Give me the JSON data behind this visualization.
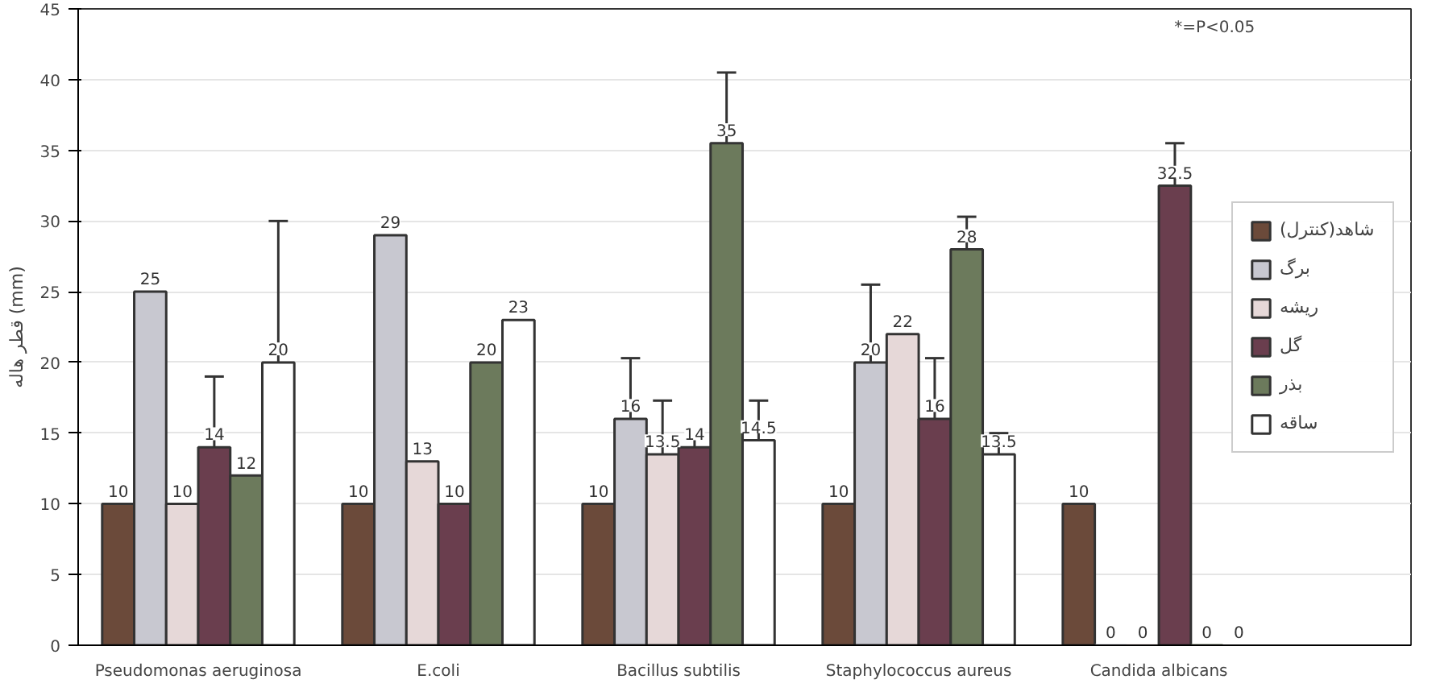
{
  "chart_data": {
    "type": "bar",
    "ylabel": "قطر هاله (mm)",
    "categories": [
      "Pseudomonas aeruginosa",
      "E.coli",
      "Bacillus subtilis",
      "Staphylococcus aureus",
      "Candida albicans"
    ],
    "series": [
      {
        "name": "شاهد(کنترل)",
        "color": "#6b4a3a",
        "values": [
          10,
          10,
          10,
          10,
          10
        ],
        "value_labels": [
          "10",
          "10",
          "10",
          "10",
          "10"
        ],
        "errors": [
          null,
          null,
          null,
          null,
          null
        ]
      },
      {
        "name": "برگ",
        "color": "#c8c8d0",
        "values": [
          25,
          29,
          16,
          20,
          0
        ],
        "value_labels": [
          "25",
          "29",
          "16",
          "20",
          "0"
        ],
        "errors": [
          null,
          null,
          [
            16,
            20.3
          ],
          [
            20,
            25.5
          ],
          null
        ]
      },
      {
        "name": "ریشه",
        "color": "#e6d8d8",
        "values": [
          10,
          13,
          13.5,
          22,
          0
        ],
        "value_labels": [
          "10",
          "13",
          "13.5",
          "22",
          "0"
        ],
        "errors": [
          null,
          null,
          [
            13.5,
            17.3
          ],
          null,
          null
        ]
      },
      {
        "name": "گل",
        "color": "#6a3e4e",
        "values": [
          14,
          10,
          14,
          16,
          32.5
        ],
        "value_labels": [
          "14",
          "10",
          "14",
          "16",
          "32.5"
        ],
        "errors": [
          [
            14,
            19
          ],
          null,
          [
            14,
            15
          ],
          [
            16,
            20.3
          ],
          [
            32.5,
            35.5
          ]
        ]
      },
      {
        "name": "بذر",
        "color": "#6c7a5c",
        "values": [
          12,
          20,
          35.5,
          28,
          0
        ],
        "value_labels": [
          "12",
          "20",
          "35",
          "28",
          "0"
        ],
        "errors": [
          null,
          null,
          [
            35.5,
            40.5
          ],
          [
            28,
            30.3
          ],
          null
        ]
      },
      {
        "name": "ساقه",
        "color": "#ffffff",
        "values": [
          20,
          23,
          14.5,
          13.5,
          0
        ],
        "value_labels": [
          "20",
          "23",
          "14.5",
          "13.5",
          "0"
        ],
        "errors": [
          [
            20,
            30
          ],
          null,
          [
            14.5,
            17.3
          ],
          [
            13.5,
            15
          ],
          null
        ]
      }
    ],
    "ylim": [
      0,
      45
    ],
    "yticks": [
      0,
      5,
      10,
      15,
      20,
      25,
      30,
      35,
      40,
      45
    ],
    "grid": "y",
    "legend": "right",
    "annotations": [
      "*=P<0.05"
    ]
  }
}
